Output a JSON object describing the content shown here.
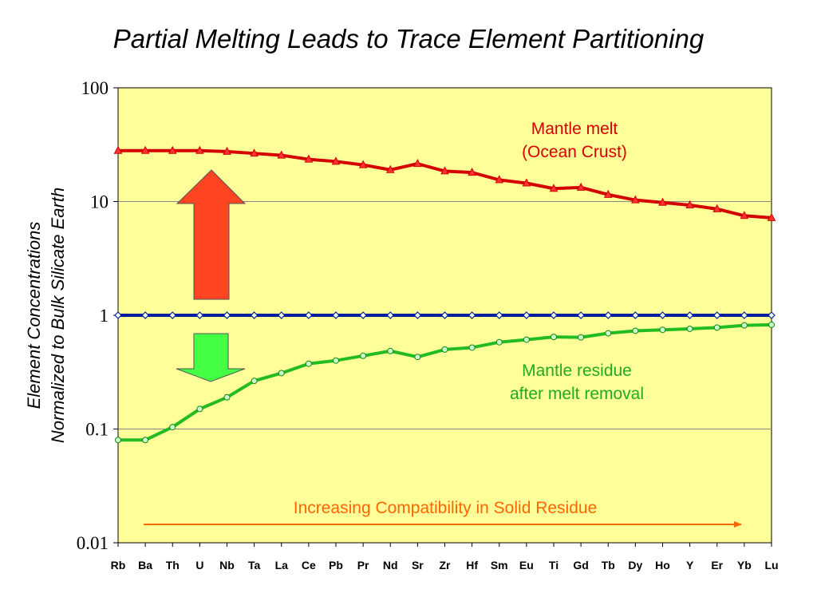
{
  "chart_data": {
    "type": "line",
    "title": "Partial Melting Leads to Trace Element Partitioning",
    "ylabel_line1": "Element Concentrations",
    "ylabel_line2": "Normalized to Bulk Silicate Earth",
    "yscale": "log",
    "ylim": [
      0.01,
      100
    ],
    "yticks": [
      "100",
      "10",
      "1",
      "0.1",
      "0.01"
    ],
    "grid": true,
    "categories": [
      "Rb",
      "Ba",
      "Th",
      "U",
      "Nb",
      "Ta",
      "La",
      "Ce",
      "Pb",
      "Pr",
      "Nd",
      "Sr",
      "Zr",
      "Hf",
      "Sm",
      "Eu",
      "Ti",
      "Gd",
      "Tb",
      "Dy",
      "Ho",
      "Y",
      "Er",
      "Yb",
      "Lu"
    ],
    "series": [
      {
        "name": "Mantle melt (Ocean Crust)",
        "color": "#d40000",
        "marker": "triangle",
        "values": [
          28,
          28,
          28,
          28,
          27.5,
          26.5,
          25.5,
          23.5,
          22.5,
          21,
          19,
          21.5,
          18.5,
          18,
          15.5,
          14.5,
          13,
          13.3,
          11.5,
          10.3,
          9.8,
          9.3,
          8.6,
          7.5,
          7.2
        ]
      },
      {
        "name": "",
        "color": "#0020a0",
        "marker": "diamond",
        "values": [
          1,
          1,
          1,
          1,
          1,
          1,
          1,
          1,
          1,
          1,
          1,
          1,
          1,
          1,
          1,
          1,
          1,
          1,
          1,
          1,
          1,
          1,
          1,
          1,
          1
        ]
      },
      {
        "name": "Mantle residue after melt removal",
        "color": "#22bb22",
        "marker": "circle",
        "values": [
          0.08,
          0.08,
          0.104,
          0.15,
          0.19,
          0.265,
          0.31,
          0.375,
          0.4,
          0.44,
          0.485,
          0.43,
          0.5,
          0.52,
          0.58,
          0.61,
          0.645,
          0.64,
          0.695,
          0.73,
          0.745,
          0.76,
          0.78,
          0.815,
          0.825
        ]
      }
    ],
    "annotations": {
      "melt_label_line1": "Mantle melt",
      "melt_label_line2": "(Ocean Crust)",
      "residue_label_line1": "Mantle residue",
      "residue_label_line2": "after melt removal",
      "compatibility_label": "Increasing Compatibility in Solid Residue"
    },
    "colors": {
      "plot_background": "#ffff99",
      "up_arrow": "#ff4422",
      "down_arrow": "#44ff44",
      "compatibility_arrow": "#ff6600"
    }
  }
}
